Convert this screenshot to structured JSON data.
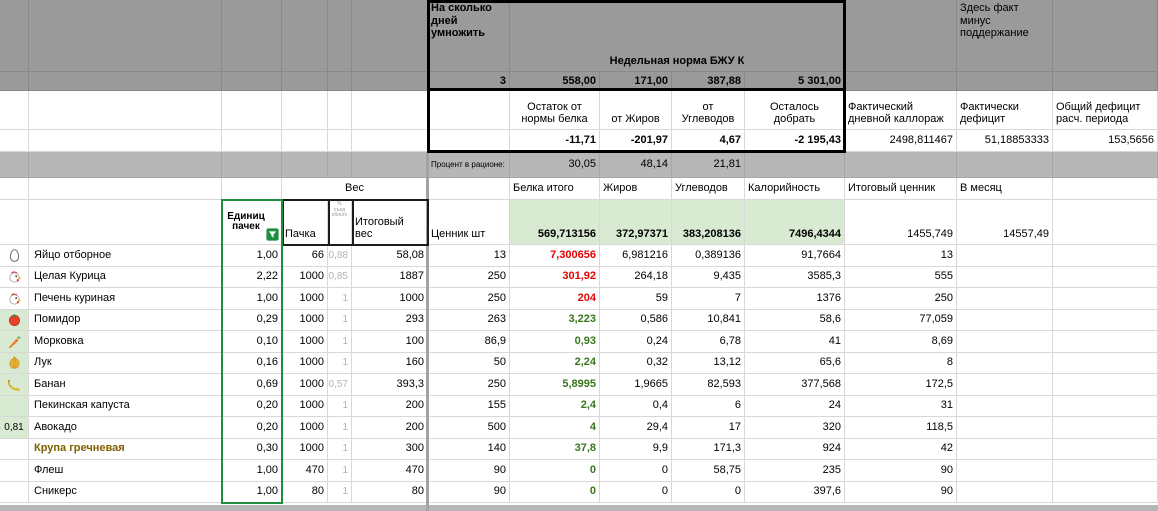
{
  "colors": {
    "dark_gray": "#9a9a9a",
    "light_gray": "#b7b7b7",
    "green_cell": "#d9ead3",
    "filter_green": "#1e8e3e",
    "red_text": "#e60000",
    "green_text": "#38761d",
    "grain_text": "#7f6000"
  },
  "top": {
    "days_label": "На сколько дней умножить",
    "days_value": "3",
    "week_norm_label": "Недельная норма БЖУ К",
    "week_norm_values": [
      "558,00",
      "171,00",
      "387,88",
      "5 301,00"
    ],
    "remainder_headers": [
      "Остаток от нормы белка",
      "от Жиров",
      "от Углеводов",
      "Осталось добрать"
    ],
    "remainder_values": [
      "-11,71",
      "-201,97",
      "4,67",
      "-2 195,43"
    ],
    "fact_note": "Здесь факт минус поддержание",
    "fact_headers": [
      "Фактический дневной каллораж",
      "Фактически дефицит",
      "Общий дефицит расч. периода"
    ],
    "fact_values": [
      "2498,811467",
      "51,18853333",
      "153,5656"
    ],
    "percent_label": "Процент в рационе:",
    "percent_values": [
      "30,05",
      "48,14",
      "21,81"
    ]
  },
  "table": {
    "group_weight": "Вес",
    "headers": {
      "units": "Единиц пачек",
      "pack": "Пачка",
      "edible": "% съед обного",
      "total_weight": "Итоговый вес",
      "protein": "Белка итого",
      "fats": "Жиров",
      "carbs": "Углеводов",
      "kcal": "Калорийность",
      "total_price": "Итоговый ценник",
      "per_month": "В месяц"
    },
    "totals": {
      "label": "Ценник шт",
      "protein": "569,713156",
      "fats": "372,97371",
      "carbs": "383,208136",
      "kcal": "7496,4344",
      "total_price": "1455,749",
      "per_month": "14557,49"
    },
    "rows": [
      {
        "icon": "egg-icon",
        "name": "Яйцо отборное",
        "units": "1,00",
        "pack": "66",
        "edible": "0,88",
        "weight": "58,08",
        "price": "13",
        "protein": "7,300656",
        "pcolor": "red",
        "fats": "6,981216",
        "carbs": "0,389136",
        "kcal": "91,7664",
        "total": "13"
      },
      {
        "icon": "chicken-icon",
        "name": "Целая Курица",
        "units": "2,22",
        "pack": "1000",
        "edible": "0,85",
        "weight": "1887",
        "price": "250",
        "protein": "301,92",
        "pcolor": "red",
        "fats": "264,18",
        "carbs": "9,435",
        "kcal": "3585,3",
        "total": "555"
      },
      {
        "icon": "chicken-icon",
        "name": "Печень куриная",
        "units": "1,00",
        "pack": "1000",
        "edible": "1",
        "weight": "1000",
        "price": "250",
        "protein": "204",
        "pcolor": "red",
        "fats": "59",
        "carbs": "7",
        "kcal": "1376",
        "total": "250"
      },
      {
        "icon": "tomato-icon",
        "name": "Помидор",
        "units": "0,29",
        "pack": "1000",
        "edible": "1",
        "weight": "293",
        "price": "263",
        "protein": "3,223",
        "pcolor": "green",
        "fats": "0,586",
        "carbs": "10,841",
        "kcal": "58,6",
        "total": "77,059",
        "agreen": true
      },
      {
        "icon": "carrot-icon",
        "name": "Морковка",
        "units": "0,10",
        "pack": "1000",
        "edible": "1",
        "weight": "100",
        "price": "86,9",
        "protein": "0,93",
        "pcolor": "green",
        "fats": "0,24",
        "carbs": "6,78",
        "kcal": "41",
        "total": "8,69",
        "agreen": true
      },
      {
        "icon": "onion-icon",
        "name": "Лук",
        "units": "0,16",
        "pack": "1000",
        "edible": "1",
        "weight": "160",
        "price": "50",
        "protein": "2,24",
        "pcolor": "green",
        "fats": "0,32",
        "carbs": "13,12",
        "kcal": "65,6",
        "total": "8",
        "agreen": true
      },
      {
        "icon": "banana-icon",
        "name": "Банан",
        "units": "0,69",
        "pack": "1000",
        "edible": "0,57",
        "weight": "393,3",
        "price": "250",
        "protein": "5,8995",
        "pcolor": "green",
        "fats": "1,9665",
        "carbs": "82,593",
        "kcal": "377,568",
        "total": "172,5",
        "agreen": true
      },
      {
        "icon": "",
        "name": "Пекинская капуста",
        "units": "0,20",
        "pack": "1000",
        "edible": "1",
        "weight": "200",
        "price": "155",
        "protein": "2,4",
        "pcolor": "green",
        "fats": "0,4",
        "carbs": "6",
        "kcal": "24",
        "total": "31",
        "agreen": true
      },
      {
        "icon": "",
        "acell": "0,81",
        "name": "Авокадо",
        "units": "0,20",
        "pack": "1000",
        "edible": "1",
        "weight": "200",
        "price": "500",
        "protein": "4",
        "pcolor": "green",
        "fats": "29,4",
        "carbs": "17",
        "kcal": "320",
        "total": "118,5",
        "agreen": true
      },
      {
        "icon": "",
        "name": "Крупа гречневая",
        "name_bold": true,
        "units": "0,30",
        "pack": "1000",
        "edible": "1",
        "weight": "300",
        "price": "140",
        "protein": "37,8",
        "pcolor": "green",
        "fats": "9,9",
        "carbs": "171,3",
        "kcal": "924",
        "total": "42"
      },
      {
        "icon": "",
        "name": "Флеш",
        "units": "1,00",
        "pack": "470",
        "edible": "1",
        "weight": "470",
        "price": "90",
        "protein": "0",
        "pcolor": "green",
        "fats": "0",
        "carbs": "58,75",
        "kcal": "235",
        "total": "90"
      },
      {
        "icon": "",
        "name": "Сникерс",
        "units": "1,00",
        "pack": "80",
        "edible": "1",
        "weight": "80",
        "price": "90",
        "protein": "0",
        "pcolor": "green",
        "fats": "0",
        "carbs": "0",
        "kcal": "397,6",
        "total": "90"
      }
    ]
  }
}
